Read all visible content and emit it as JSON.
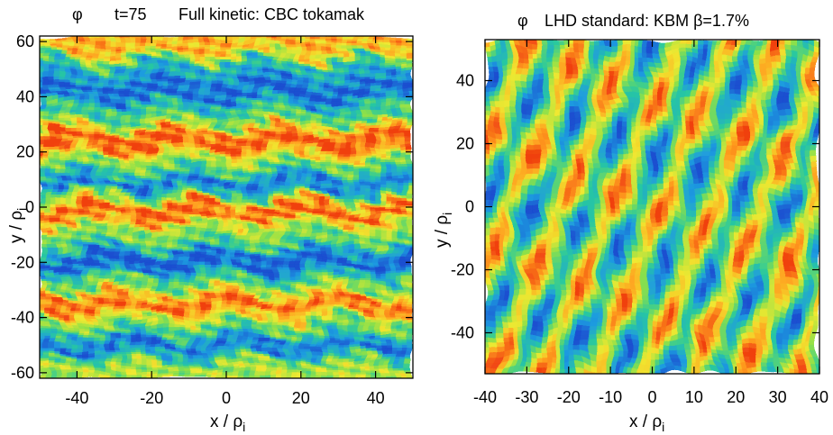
{
  "chart_data": [
    {
      "type": "heatmap",
      "title_symbol": "φ",
      "time_label": "t=75",
      "title": "Full kinetic: CBC tokamak",
      "xlabel": "x / ρi",
      "ylabel": "y / ρi",
      "xlabel_main": "x / ρ",
      "ylabel_main": "y / ρ",
      "label_subscript": "i",
      "xlim": [
        -50,
        50
      ],
      "ylim": [
        -62,
        62
      ],
      "xticks": [
        -40,
        -20,
        0,
        20,
        40
      ],
      "xtick_labels": [
        "-40",
        "-20",
        "0",
        "20",
        "40"
      ],
      "yticks": [
        60,
        40,
        20,
        0,
        -20,
        -40,
        -60
      ],
      "ytick_labels": [
        "60",
        "40",
        "20",
        "0",
        "-20",
        "-40",
        "-60"
      ],
      "colormap": [
        "#1a4fd0",
        "#1f9be0",
        "#28c8a0",
        "#8ce04a",
        "#f0e830",
        "#ffa020",
        "#f04010"
      ],
      "pattern": "horizontal zonal bands",
      "bands": [
        {
          "y": 58,
          "value": 0.78
        },
        {
          "y": 50,
          "value": 0.25
        },
        {
          "y": 42,
          "value": 0.05
        },
        {
          "y": 33,
          "value": 0.4
        },
        {
          "y": 24,
          "value": 0.97
        },
        {
          "y": 15,
          "value": 0.45
        },
        {
          "y": 8,
          "value": 0.1
        },
        {
          "y": -1,
          "value": 0.95
        },
        {
          "y": -11,
          "value": 0.45
        },
        {
          "y": -20,
          "value": 0.02
        },
        {
          "y": -28,
          "value": 0.45
        },
        {
          "y": -35,
          "value": 0.93
        },
        {
          "y": -44,
          "value": 0.42
        },
        {
          "y": -50,
          "value": 0.08
        },
        {
          "y": -58,
          "value": 0.55
        }
      ]
    },
    {
      "type": "heatmap",
      "title_symbol": "φ",
      "title": "LHD standard: KBM β=1.7%",
      "xlabel": "x / ρi",
      "ylabel": "y / ρi",
      "xlabel_main": "x / ρ",
      "ylabel_main": "y / ρ",
      "label_subscript": "i",
      "xlim": [
        -40,
        40
      ],
      "ylim": [
        -53,
        53
      ],
      "xticks": [
        -40,
        -30,
        -20,
        -10,
        0,
        10,
        20,
        30,
        40
      ],
      "xtick_labels": [
        "-40",
        "-30",
        "-20",
        "-10",
        "0",
        "10",
        "20",
        "30",
        "40"
      ],
      "yticks": [
        40,
        20,
        0,
        -20,
        -40
      ],
      "ytick_labels": [
        "40",
        "20",
        "0",
        "-20",
        "-40"
      ],
      "colormap": [
        "#1a4fd0",
        "#1f9be0",
        "#28c8a0",
        "#8ce04a",
        "#f0e830",
        "#ffa020",
        "#f04010"
      ],
      "pattern": "diagonal cellular structures",
      "kx_period": 12,
      "ky_period": 34
    }
  ]
}
